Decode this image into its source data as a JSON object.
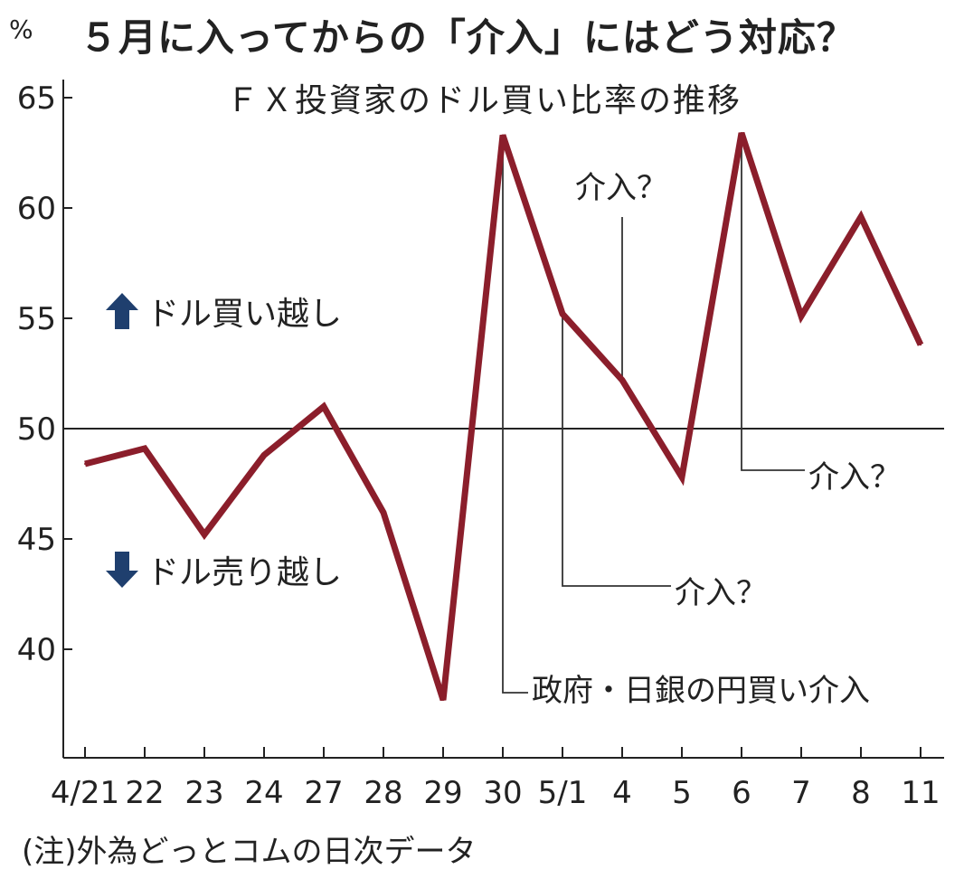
{
  "header": {
    "unit": "%",
    "title": "５月に入ってからの「介入」にはどう対応？",
    "subtitle": "ＦＸ投資家のドル買い比率の推移"
  },
  "legend_labels": {
    "buy_over": "ドル買い越し",
    "sell_over": "ドル売り越し",
    "up_icon": "up-arrow-icon",
    "down_icon": "down-arrow-icon"
  },
  "annotations": {
    "actual_intervention": "政府・日銀の円買い介入",
    "suspected_1": "介入？",
    "suspected_2": "介入？",
    "suspected_3": "介入？"
  },
  "footnote": "(注)外為どっとコムの日次データ",
  "colors": {
    "line": "#8b1e2b",
    "arrow": "#1f3f6e",
    "axis": "#222222"
  },
  "chart_data": {
    "type": "line",
    "title": "５月に入ってからの「介入」にはどう対応？",
    "subtitle": "ＦＸ投資家のドル買い比率の推移",
    "ylabel": "%",
    "xlabel": "",
    "categories": [
      "4/21",
      "22",
      "23",
      "24",
      "27",
      "28",
      "29",
      "30",
      "5/1",
      "4",
      "5",
      "6",
      "7",
      "8",
      "11"
    ],
    "series": [
      {
        "values": [
          48.4,
          49.1,
          45.2,
          48.8,
          51.0,
          46.2,
          37.7,
          63.3,
          55.2,
          52.2,
          47.8,
          63.4,
          55.1,
          59.6,
          53.8
        ]
      }
    ],
    "ylim": [
      35,
      66
    ],
    "yticks": [
      40,
      45,
      50,
      55,
      60,
      65
    ],
    "reference_line": 50,
    "grid": false
  }
}
